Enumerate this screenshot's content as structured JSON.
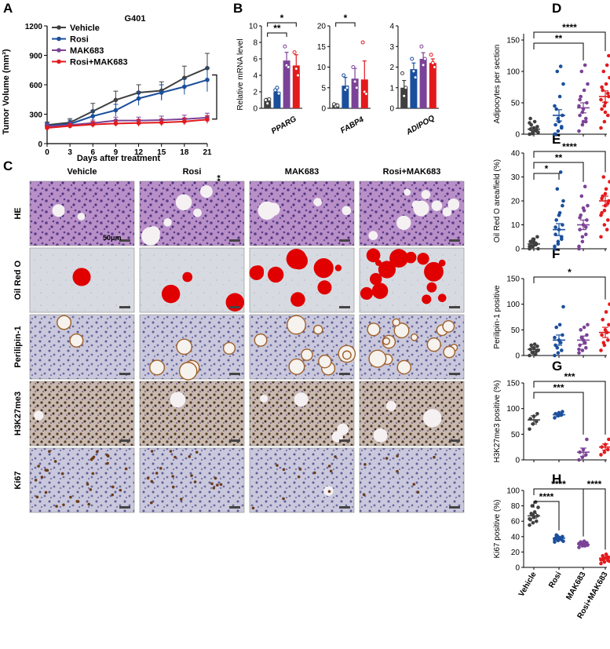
{
  "panels": {
    "A": "A",
    "B": "B",
    "C": "C",
    "D": "D",
    "E": "E",
    "F": "F",
    "G": "G",
    "H": "H"
  },
  "colors": {
    "vehicle": "#404040",
    "rosi": "#1a4f9c",
    "mak683": "#7b4397",
    "combo": "#e31a1c"
  },
  "groups": [
    "Vehicle",
    "Rosi",
    "MAK683",
    "Rosi+MAK683"
  ],
  "panel_c": {
    "columns": [
      "Vehicle",
      "Rosi",
      "MAK683",
      "Rosi+MAK683"
    ],
    "rows": [
      "HE",
      "Oil Red O",
      "Perilipin-1",
      "H3K27me3",
      "Ki67"
    ],
    "scale_label": "50μm"
  },
  "chart_data": [
    {
      "id": "A",
      "type": "line",
      "title": "G401",
      "xlabel": "Days after treatment",
      "ylabel": "Tumor Volume (mm³)",
      "x": [
        0,
        3,
        6,
        9,
        12,
        15,
        18,
        21
      ],
      "xlim": [
        0,
        21
      ],
      "ylim": [
        0,
        1200
      ],
      "yticks": [
        0,
        300,
        600,
        900,
        1200
      ],
      "legend": "top-left",
      "significance": "****",
      "series": [
        {
          "name": "Vehicle",
          "values": [
            190,
            215,
            330,
            445,
            520,
            540,
            670,
            770
          ],
          "err": [
            30,
            40,
            80,
            90,
            80,
            90,
            120,
            150
          ]
        },
        {
          "name": "Rosi",
          "values": [
            180,
            200,
            280,
            340,
            460,
            520,
            580,
            650
          ],
          "err": [
            30,
            40,
            60,
            60,
            70,
            80,
            80,
            120
          ]
        },
        {
          "name": "MAK683",
          "values": [
            175,
            190,
            210,
            235,
            235,
            240,
            250,
            265
          ],
          "err": [
            25,
            30,
            30,
            35,
            35,
            40,
            40,
            45
          ]
        },
        {
          "name": "Rosi+MAK683",
          "values": [
            160,
            180,
            195,
            205,
            210,
            215,
            225,
            245
          ],
          "err": [
            20,
            25,
            30,
            30,
            35,
            35,
            35,
            40
          ]
        }
      ]
    },
    {
      "id": "B",
      "type": "bar",
      "ylabel": "Relative mRNA level",
      "genes": [
        {
          "name": "PPARG",
          "ylim": [
            0,
            10
          ],
          "yticks": [
            0,
            2,
            4,
            6,
            8,
            10
          ],
          "values": [
            0.9,
            2.0,
            5.8,
            5.2
          ],
          "err": [
            0.3,
            0.4,
            1.0,
            1.3
          ],
          "points": [
            [
              1.0,
              0.6,
              1.1
            ],
            [
              2.2,
              2.5,
              1.8
            ],
            [
              7.5,
              5.2,
              5.0
            ],
            [
              6.8,
              4.8,
              4.0
            ]
          ],
          "sig": [
            {
              "a": 0,
              "b": 2,
              "label": "**"
            },
            {
              "a": 0,
              "b": 3,
              "label": "*"
            }
          ]
        },
        {
          "name": "FABP4",
          "ylim": [
            0,
            20
          ],
          "yticks": [
            0,
            5,
            10,
            15,
            20
          ],
          "values": [
            0.8,
            5.5,
            7.2,
            7.0
          ],
          "err": [
            0.3,
            2.0,
            2.5,
            4.5
          ],
          "points": [
            [
              1.0,
              0.5,
              0.7
            ],
            [
              8.0,
              4.5,
              5.0
            ],
            [
              10.0,
              6.5,
              5.0
            ],
            [
              16.0,
              4.0,
              3.5
            ]
          ],
          "sig": [
            {
              "a": 0,
              "b": 2,
              "label": "*"
            }
          ]
        },
        {
          "name": "ADIPOQ",
          "ylim": [
            0,
            4
          ],
          "yticks": [
            0,
            1,
            2,
            3,
            4
          ],
          "values": [
            1.0,
            1.9,
            2.4,
            2.2
          ],
          "err": [
            0.35,
            0.3,
            0.3,
            0.2
          ],
          "points": [
            [
              1.7,
              0.6,
              1.0
            ],
            [
              2.4,
              1.8,
              1.5
            ],
            [
              3.0,
              2.1,
              2.4
            ],
            [
              2.6,
              2.2,
              2.0
            ]
          ],
          "sig": []
        }
      ]
    },
    {
      "id": "D",
      "type": "scatter",
      "ylabel": "Adipocytes per section",
      "ylim": [
        0,
        160
      ],
      "yticks": [
        0,
        50,
        100,
        150
      ],
      "means": [
        8,
        30,
        42,
        60
      ],
      "sem": [
        3,
        9,
        8,
        9
      ],
      "points": [
        [
          0,
          2,
          5,
          8,
          10,
          12,
          15,
          20,
          3,
          1,
          6,
          18,
          4,
          7,
          25
        ],
        [
          0,
          5,
          10,
          15,
          20,
          30,
          40,
          60,
          80,
          100,
          108,
          45,
          25,
          12,
          0
        ],
        [
          5,
          15,
          20,
          30,
          40,
          50,
          60,
          70,
          80,
          100,
          110,
          45,
          35,
          25,
          55,
          20
        ],
        [
          10,
          20,
          30,
          40,
          50,
          60,
          70,
          80,
          90,
          100,
          110,
          55,
          45,
          65,
          75,
          35,
          125
        ]
      ],
      "sig": [
        {
          "a": 0,
          "b": 2,
          "label": "**"
        },
        {
          "a": 0,
          "b": 3,
          "label": "****"
        }
      ]
    },
    {
      "id": "E",
      "type": "scatter",
      "ylabel": "Oil Red O area/field  (%)",
      "ylim": [
        0,
        40
      ],
      "yticks": [
        0,
        10,
        20,
        30,
        40
      ],
      "means": [
        2,
        8,
        10,
        20
      ],
      "sem": [
        0.8,
        2.5,
        2,
        2
      ],
      "points": [
        [
          0,
          1,
          2,
          3,
          4,
          5,
          1,
          2,
          0,
          3,
          2,
          1,
          4,
          2,
          1,
          3
        ],
        [
          0,
          2,
          4,
          6,
          8,
          10,
          12,
          15,
          20,
          25,
          32,
          1,
          3,
          5,
          9,
          14,
          18
        ],
        [
          0,
          3,
          6,
          8,
          10,
          12,
          14,
          16,
          18,
          22,
          26,
          1,
          5,
          9,
          13,
          17
        ],
        [
          5,
          10,
          12,
          15,
          18,
          20,
          22,
          25,
          28,
          30,
          8,
          14,
          16,
          19,
          21,
          23
        ]
      ],
      "sig": [
        {
          "a": 0,
          "b": 1,
          "label": "*"
        },
        {
          "a": 0,
          "b": 2,
          "label": "**"
        },
        {
          "a": 0,
          "b": 3,
          "label": "****"
        }
      ]
    },
    {
      "id": "F",
      "type": "scatter",
      "ylabel": "Perilipin-1 positive",
      "ylim": [
        0,
        150
      ],
      "yticks": [
        0,
        50,
        100,
        150
      ],
      "means": [
        12,
        30,
        30,
        45
      ],
      "sem": [
        4,
        10,
        8,
        10
      ],
      "points": [
        [
          0,
          5,
          8,
          12,
          15,
          18,
          20,
          22,
          10,
          6,
          2
        ],
        [
          0,
          5,
          10,
          20,
          30,
          40,
          55,
          60,
          95,
          15,
          25,
          35
        ],
        [
          5,
          10,
          15,
          20,
          30,
          40,
          50,
          55,
          60,
          35,
          25,
          12
        ],
        [
          10,
          20,
          30,
          40,
          50,
          60,
          70,
          85,
          100,
          25,
          45
        ]
      ],
      "sig": [
        {
          "a": 0,
          "b": 3,
          "label": "*"
        }
      ]
    },
    {
      "id": "G",
      "type": "scatter",
      "ylabel": "H3K27me3 positive (%)",
      "ylim": [
        0,
        150
      ],
      "yticks": [
        0,
        50,
        100,
        150
      ],
      "means": [
        78,
        88,
        15,
        25
      ],
      "sem": [
        8,
        3,
        8,
        6
      ],
      "points": [
        [
          60,
          70,
          75,
          80,
          85,
          90
        ],
        [
          82,
          86,
          88,
          90,
          92,
          94
        ],
        [
          0,
          5,
          10,
          15,
          20,
          40
        ],
        [
          10,
          15,
          20,
          25,
          30,
          40
        ]
      ],
      "sig": [
        {
          "a": 0,
          "b": 2,
          "label": "***"
        },
        {
          "a": 0,
          "b": 3,
          "label": "***"
        }
      ]
    },
    {
      "id": "H",
      "type": "scatter",
      "ylabel": "Ki67 positive (%)",
      "ylim": [
        0,
        100
      ],
      "yticks": [
        0,
        20,
        40,
        60,
        80,
        100
      ],
      "means": [
        67,
        38,
        30,
        12
      ],
      "sem": [
        3,
        1.5,
        1.2,
        1.5
      ],
      "points": [
        [
          55,
          58,
          60,
          62,
          65,
          67,
          70,
          72,
          78,
          80,
          85,
          63,
          68
        ],
        [
          33,
          35,
          36,
          38,
          39,
          40,
          42,
          37,
          34,
          41,
          38,
          36
        ],
        [
          26,
          28,
          29,
          30,
          31,
          32,
          33,
          34,
          29,
          30,
          28,
          31
        ],
        [
          5,
          7,
          9,
          10,
          12,
          13,
          15,
          17,
          8,
          11,
          14,
          10
        ]
      ],
      "sig": [
        {
          "a": 0,
          "b": 1,
          "label": "****"
        },
        {
          "a": 0,
          "b": 2,
          "label": "****"
        },
        {
          "a": 2,
          "b": 3,
          "label": "****"
        }
      ],
      "xticks": [
        "Vehicle",
        "Rosi",
        "MAK683",
        "Rosi+MAK683"
      ]
    }
  ]
}
